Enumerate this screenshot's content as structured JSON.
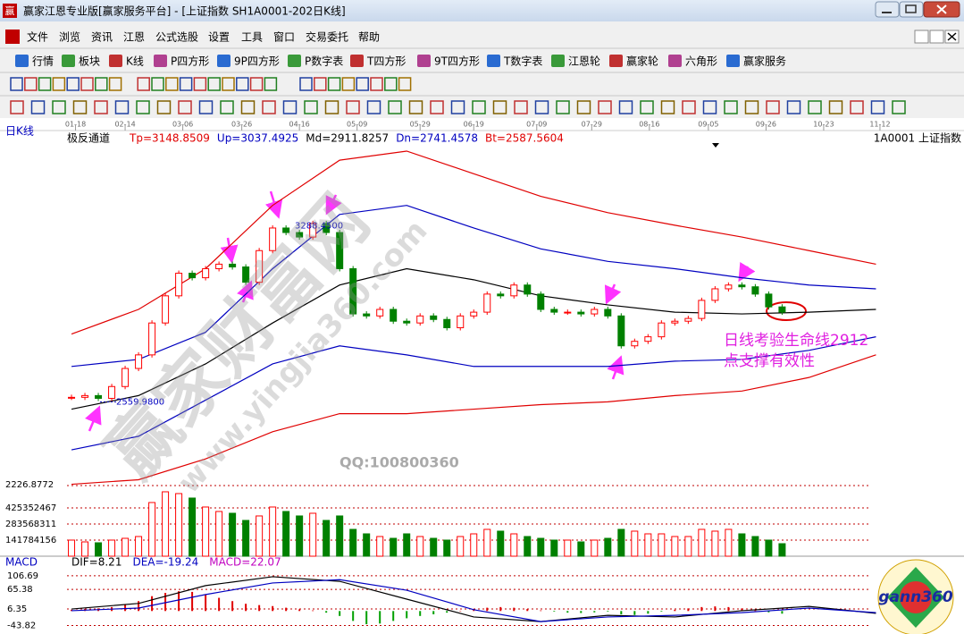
{
  "window": {
    "app_icon": "赢",
    "title": "赢家江恩专业版[赢家服务平台] - [上证指数  SH1A0001-202日K线]"
  },
  "menu": [
    "文件",
    "浏览",
    "资讯",
    "江恩",
    "公式选股",
    "设置",
    "工具",
    "窗口",
    "交易委托",
    "帮助"
  ],
  "toolbar": [
    "行情",
    "板块",
    "K线",
    "P四方形",
    "9P四方形",
    "P数字表",
    "T四方形",
    "9T四方形",
    "T数字表",
    "江恩轮",
    "赢家轮",
    "六角形",
    "赢家服务"
  ],
  "chart_data": [
    {
      "type": "candlestick",
      "panel_label": "日K线",
      "indicator": "极反通道",
      "params": [
        {
          "text": "Tp=3148.8509",
          "color": "#e00000"
        },
        {
          "text": "Up=3037.4925",
          "color": "#0000c0"
        },
        {
          "text": "Md=2911.8257",
          "color": "#000000"
        },
        {
          "text": "Dn=2741.4578",
          "color": "#0000c0"
        },
        {
          "text": "Bt=2587.5604",
          "color": "#e00000"
        }
      ],
      "symbol": "1A0001  上证指数",
      "xlim": [
        -5,
        66.3
      ],
      "xticks": [
        {
          "value": 0.3,
          "label": "01-18"
        },
        {
          "value": 4,
          "label": "02-14"
        },
        {
          "value": 8.3,
          "label": "03-06"
        },
        {
          "value": 12.7,
          "label": "03-26"
        },
        {
          "value": 17,
          "label": "04-16"
        },
        {
          "value": 21.3,
          "label": "05-09"
        },
        {
          "value": 26,
          "label": "05-29"
        },
        {
          "value": 30,
          "label": "06-19"
        },
        {
          "value": 34.7,
          "label": "07-09"
        },
        {
          "value": 38.8,
          "label": "07-29"
        },
        {
          "value": 43.1,
          "label": "08-16"
        },
        {
          "value": 47.5,
          "label": "09-05"
        },
        {
          "value": 51.8,
          "label": "09-26"
        },
        {
          "value": 56.1,
          "label": "10-23"
        },
        {
          "value": 60.3,
          "label": "11-12"
        }
      ],
      "ylim": [
        2226.8772,
        3590
      ],
      "yticks": [
        2226.8772
      ],
      "up_color": "#ff0000",
      "down_color": "#008000",
      "closes": [
        2578,
        2585,
        2574,
        2621,
        2693,
        2747,
        2874,
        2982,
        3072,
        3054,
        3090,
        3108,
        3097,
        3036,
        3162,
        3252,
        3234,
        3216,
        3270,
        3234,
        3090,
        2910,
        2902,
        2928,
        2881,
        2874,
        2902,
        2888,
        2855,
        2902,
        2917,
        2989,
        2982,
        3025,
        2989,
        2928,
        2917,
        2917,
        2910,
        2928,
        2902,
        2783,
        2801,
        2819,
        2874,
        2881,
        2892,
        2964,
        3010,
        3025,
        3018,
        2989,
        2938,
        2917
      ],
      "high": {
        "value": 3288.45,
        "label": "3288.4500"
      },
      "low": {
        "value": 2559.98,
        "label": "2559.9800"
      },
      "channels": {
        "x": [
          0,
          5,
          10,
          15,
          20,
          25,
          30,
          35,
          40,
          45,
          50,
          55,
          60
        ],
        "series": [
          {
            "color": "#e00000",
            "values": [
              2830,
              2928,
              3090,
              3342,
              3522,
              3558,
              3468,
              3378,
              3313,
              3263,
              3216,
              3162,
              3108
            ]
          },
          {
            "color": "#0000c0",
            "values": [
              2701,
              2729,
              2837,
              3090,
              3306,
              3342,
              3252,
              3169,
              3119,
              3090,
              3054,
              3025,
              3010
            ]
          },
          {
            "color": "#000000",
            "values": [
              2531,
              2585,
              2711,
              2874,
              3025,
              3090,
              3046,
              2982,
              2946,
              2917,
              2910,
              2917,
              2928
            ]
          },
          {
            "color": "#0000c0",
            "values": [
              2369,
              2423,
              2567,
              2711,
              2783,
              2747,
              2701,
              2701,
              2701,
              2722,
              2729,
              2765,
              2819
            ]
          },
          {
            "color": "#e00000",
            "values": [
              2232,
              2250,
              2333,
              2441,
              2513,
              2513,
              2531,
              2549,
              2560,
              2585,
              2603,
              2657,
              2747
            ]
          }
        ]
      },
      "annotation": [
        "日线考验生命线2912",
        "点支撑有效性"
      ],
      "watermark": [
        "赢家财富网",
        "www.yingjia360.com"
      ],
      "contact": "QQ:100800360"
    },
    {
      "type": "volume",
      "ylim": [
        0,
        622000000
      ],
      "yticks": [
        141784156,
        283568311,
        425352467
      ],
      "values": [
        141800000,
        126000000,
        118200000,
        141800000,
        157500000,
        173300000,
        472600000,
        567100000,
        551400000,
        512000000,
        433200000,
        393800000,
        378100000,
        315100000,
        354500000,
        433200000,
        393800000,
        354500000,
        378100000,
        315100000,
        354500000,
        236300000,
        196900000,
        173300000,
        157500000,
        196900000,
        173300000,
        157500000,
        141800000,
        173300000,
        196900000,
        236300000,
        220600000,
        196900000,
        173300000,
        157500000,
        141800000,
        141800000,
        126000000,
        141800000,
        157500000,
        236300000,
        220600000,
        196900000,
        196900000,
        173300000,
        173300000,
        236300000,
        220600000,
        236300000,
        196900000,
        173300000,
        141800000,
        110300000
      ]
    },
    {
      "type": "macd",
      "label": "MACD",
      "params": [
        {
          "text": "DIF=8.21",
          "color": "#000000"
        },
        {
          "text": "DEA=-19.24",
          "color": "#0000c0"
        },
        {
          "text": "MACD=22.07",
          "color": "#c000c0"
        }
      ],
      "ylim": [
        -58.8,
        133.6
      ],
      "yticks": [
        106.69,
        65.38,
        6.35,
        -43.82
      ],
      "x": [
        0,
        5,
        10,
        15,
        20,
        25,
        30,
        35,
        40,
        45,
        50,
        55,
        60
      ],
      "dif": [
        6,
        23,
        77,
        104,
        90,
        36,
        -18,
        -32,
        -13,
        -18,
        1,
        14,
        -7
      ],
      "dea": [
        1,
        9,
        50,
        85,
        95,
        63,
        4,
        -32,
        -18,
        -13,
        -5,
        9,
        -5
      ],
      "hist": [
        4,
        6,
        8,
        12,
        20,
        30,
        45,
        55,
        60,
        58,
        50,
        40,
        30,
        22,
        18,
        15,
        10,
        5,
        2,
        -5,
        -15,
        -30,
        -40,
        -38,
        -30,
        -22,
        -15,
        -10,
        -5,
        0,
        5,
        10,
        12,
        10,
        6,
        2,
        -2,
        -5,
        -6,
        -4,
        -2,
        -10,
        -12,
        -8,
        -2,
        4,
        8,
        12,
        14,
        12,
        8,
        2,
        -4,
        -8
      ]
    }
  ],
  "logo": "gann360"
}
